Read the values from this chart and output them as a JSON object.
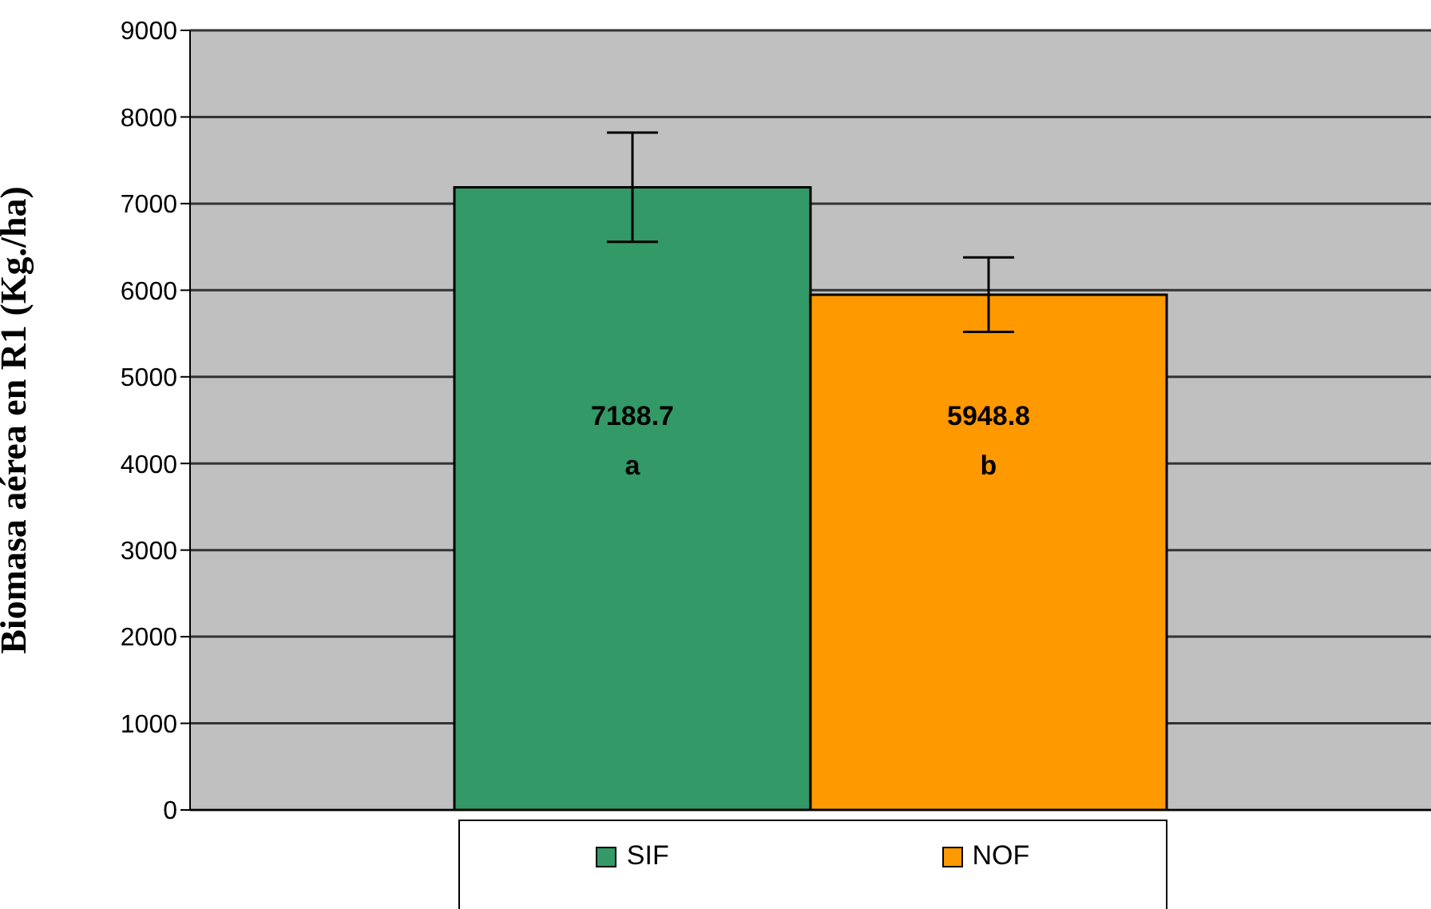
{
  "chart_data": {
    "type": "bar",
    "ylabel": "Biomasa aérea en R1 (Kg./ha)",
    "categories": [
      null
    ],
    "series": [
      {
        "name": "SIF",
        "color": "#339966",
        "values": [
          7188.7
        ],
        "errors": [
          630
        ],
        "value_labels": [
          "7188.7\na"
        ]
      },
      {
        "name": "NOF",
        "color": "#ff9900",
        "values": [
          5948.8
        ],
        "errors": [
          430
        ],
        "value_labels": [
          "5948.8\nb"
        ]
      }
    ],
    "ylim": [
      0,
      9000
    ],
    "yticks": [
      0,
      1000,
      2000,
      3000,
      4000,
      5000,
      6000,
      7000,
      8000,
      9000
    ],
    "grid": "y",
    "legend": "bottom"
  }
}
